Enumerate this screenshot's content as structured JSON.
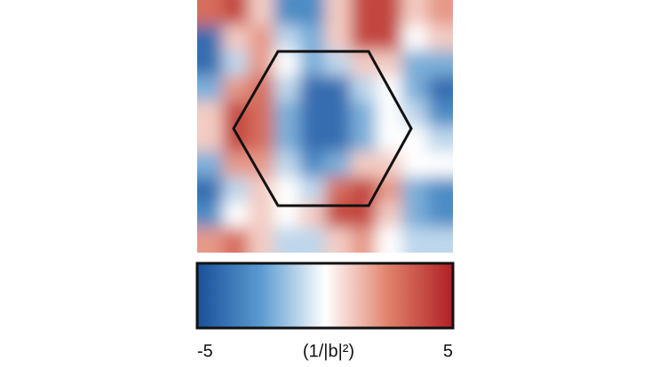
{
  "chart_data": {
    "type": "heatmap",
    "z": [
      [
        3,
        4,
        1,
        -3,
        -3,
        1,
        4,
        4,
        1,
        2
      ],
      [
        -4,
        1,
        2,
        -1,
        -2,
        1,
        4,
        4,
        0,
        1
      ],
      [
        -4,
        -1,
        2,
        0,
        -2,
        -1,
        1,
        1,
        -2,
        -2
      ],
      [
        -2,
        2,
        3,
        -1,
        -4,
        -4,
        -1,
        0,
        -2,
        -4
      ],
      [
        1,
        4,
        3,
        -2,
        -4,
        -4,
        -2,
        0,
        -1,
        -3
      ],
      [
        1,
        4,
        3,
        -2,
        -4,
        -4,
        -2,
        0,
        0,
        -1
      ],
      [
        -2,
        2,
        2,
        -1,
        -3,
        -2,
        1,
        1,
        0,
        0
      ],
      [
        -4,
        -1,
        1,
        0,
        -1,
        3,
        4,
        2,
        -2,
        -3
      ],
      [
        -3,
        0,
        1,
        0,
        1,
        4,
        4,
        1,
        -2,
        -3
      ],
      [
        2,
        3,
        1,
        -1,
        -1,
        1,
        2,
        0,
        -1,
        -1
      ]
    ],
    "colormap": [
      "#1a4f9a",
      "#5b9bd0",
      "#ffffff",
      "#e0806a",
      "#b01f24"
    ],
    "clim": [
      -5,
      5
    ],
    "cticks": [
      -5,
      5
    ],
    "colorbar_label": "(1/|b|²)"
  }
}
